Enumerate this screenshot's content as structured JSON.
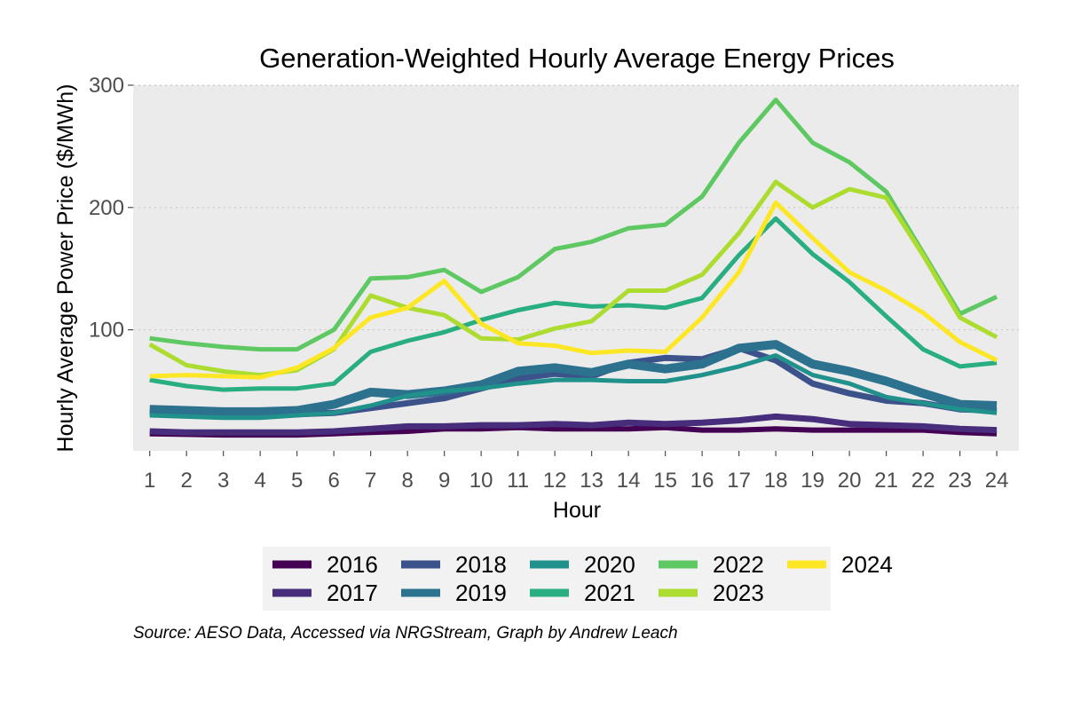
{
  "chart_data": {
    "type": "line",
    "title": "Generation-Weighted Hourly Average Energy Prices",
    "xlabel": "Hour",
    "ylabel": "Hourly Average Power Price ($/MWh)",
    "x": [
      1,
      2,
      3,
      4,
      5,
      6,
      7,
      8,
      9,
      10,
      11,
      12,
      13,
      14,
      15,
      16,
      17,
      18,
      19,
      20,
      21,
      22,
      23,
      24
    ],
    "x_tick_labels": [
      "1",
      "2",
      "3",
      "4",
      "5",
      "6",
      "7",
      "8",
      "9",
      "10",
      "11",
      "12",
      "13",
      "14",
      "15",
      "16",
      "17",
      "18",
      "19",
      "20",
      "21",
      "22",
      "23",
      "24"
    ],
    "xlim": [
      0.55,
      24.6
    ],
    "ylim": [
      1,
      300
    ],
    "y_ticks": [
      100,
      200,
      300
    ],
    "y_tick_labels": [
      "100",
      "200",
      "300"
    ],
    "grid": true,
    "legend_position": "bottom",
    "source": "Source: AESO Data, Accessed via NRGStream, Graph by Andrew Leach",
    "series": [
      {
        "name": "2016",
        "color": "#440154",
        "width": 6,
        "values": [
          15,
          14.5,
          14,
          14,
          14,
          15,
          16,
          17,
          19,
          19,
          20,
          19,
          19,
          19,
          20,
          18,
          18,
          19,
          18,
          18,
          18,
          18,
          16,
          15
        ]
      },
      {
        "name": "2017",
        "color": "#472d7b",
        "width": 7,
        "values": [
          17,
          16,
          16,
          16,
          16,
          17,
          19,
          21,
          21,
          22,
          22,
          23,
          22,
          24,
          23,
          24,
          26,
          29,
          27,
          23,
          22,
          21,
          19,
          18
        ]
      },
      {
        "name": "2018",
        "color": "#3b528b",
        "width": 7,
        "values": [
          33,
          31,
          30,
          30,
          31,
          32,
          36,
          40,
          44,
          52,
          60,
          64,
          62,
          73,
          77,
          76,
          85,
          75,
          56,
          48,
          42,
          40,
          35,
          34
        ]
      },
      {
        "name": "2019",
        "color": "#2c728e",
        "width": 10,
        "values": [
          35,
          34,
          33,
          33,
          34,
          39,
          49,
          47,
          50,
          55,
          66,
          69,
          65,
          72,
          68,
          72,
          85,
          88,
          72,
          66,
          58,
          48,
          39,
          38
        ]
      },
      {
        "name": "2020",
        "color": "#21918c",
        "width": 5,
        "values": [
          30,
          29,
          28,
          28,
          30,
          32,
          38,
          46,
          50,
          52,
          56,
          59,
          59,
          58,
          58,
          63,
          70,
          79,
          63,
          56,
          45,
          40,
          35,
          32
        ]
      },
      {
        "name": "2021",
        "color": "#28ae80",
        "width": 5,
        "values": [
          59,
          54,
          51,
          52,
          52,
          56,
          82,
          91,
          98,
          108,
          116,
          122,
          119,
          120,
          118,
          126,
          161,
          191,
          162,
          139,
          111,
          84,
          70,
          73
        ]
      },
      {
        "name": "2022",
        "color": "#5ec962",
        "width": 5,
        "values": [
          93,
          89,
          86,
          84,
          84,
          100,
          142,
          143,
          149,
          131,
          143,
          166,
          172,
          183,
          186,
          209,
          253,
          288,
          253,
          237,
          213,
          163,
          113,
          127
        ]
      },
      {
        "name": "2023",
        "color": "#addc30",
        "width": 5,
        "values": [
          88,
          71,
          66,
          63,
          67,
          84,
          128,
          118,
          112,
          93,
          92,
          101,
          107,
          132,
          132,
          145,
          179,
          221,
          200,
          215,
          208,
          161,
          110,
          94
        ]
      },
      {
        "name": "2024",
        "color": "#fde725",
        "width": 5,
        "values": [
          62,
          63,
          62,
          61,
          69,
          85,
          110,
          118,
          140,
          105,
          89,
          87,
          81,
          83,
          82,
          110,
          147,
          204,
          175,
          147,
          132,
          114,
          90,
          75
        ]
      }
    ]
  }
}
